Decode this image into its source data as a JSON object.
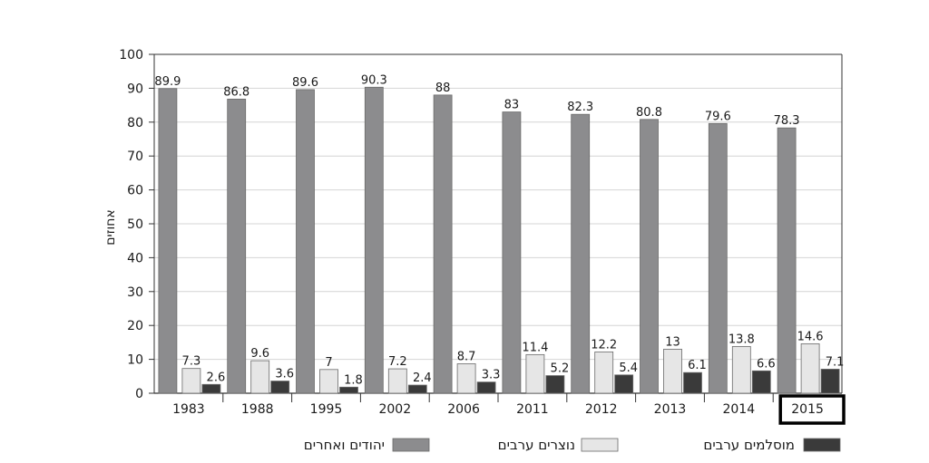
{
  "chart_data": {
    "type": "bar",
    "ylabel": "אחוזים",
    "ylim": [
      0,
      100
    ],
    "yticks": [
      0,
      10,
      20,
      30,
      40,
      50,
      60,
      70,
      80,
      90,
      100
    ],
    "grid": true,
    "categories": [
      "1983",
      "1988",
      "1995",
      "2002",
      "2006",
      "2011",
      "2012",
      "2013",
      "2014",
      "2015"
    ],
    "highlighted_category": "2015",
    "series": [
      {
        "name": "יהודים ואחרים",
        "color": "#8c8c8e",
        "values": [
          89.9,
          86.8,
          89.6,
          90.3,
          88,
          83,
          82.3,
          80.8,
          79.6,
          78.3
        ]
      },
      {
        "name": "נוצרים ערבים",
        "color": "#e6e6e6",
        "values": [
          7.3,
          9.6,
          7,
          7.2,
          8.7,
          11.4,
          12.2,
          13,
          13.8,
          14.6
        ]
      },
      {
        "name": "מוסלמים ערבים",
        "color": "#3a3a3a",
        "values": [
          2.6,
          3.6,
          1.8,
          2.4,
          3.3,
          5.2,
          5.4,
          6.1,
          6.6,
          7.1
        ]
      }
    ],
    "legend_position": "bottom"
  }
}
